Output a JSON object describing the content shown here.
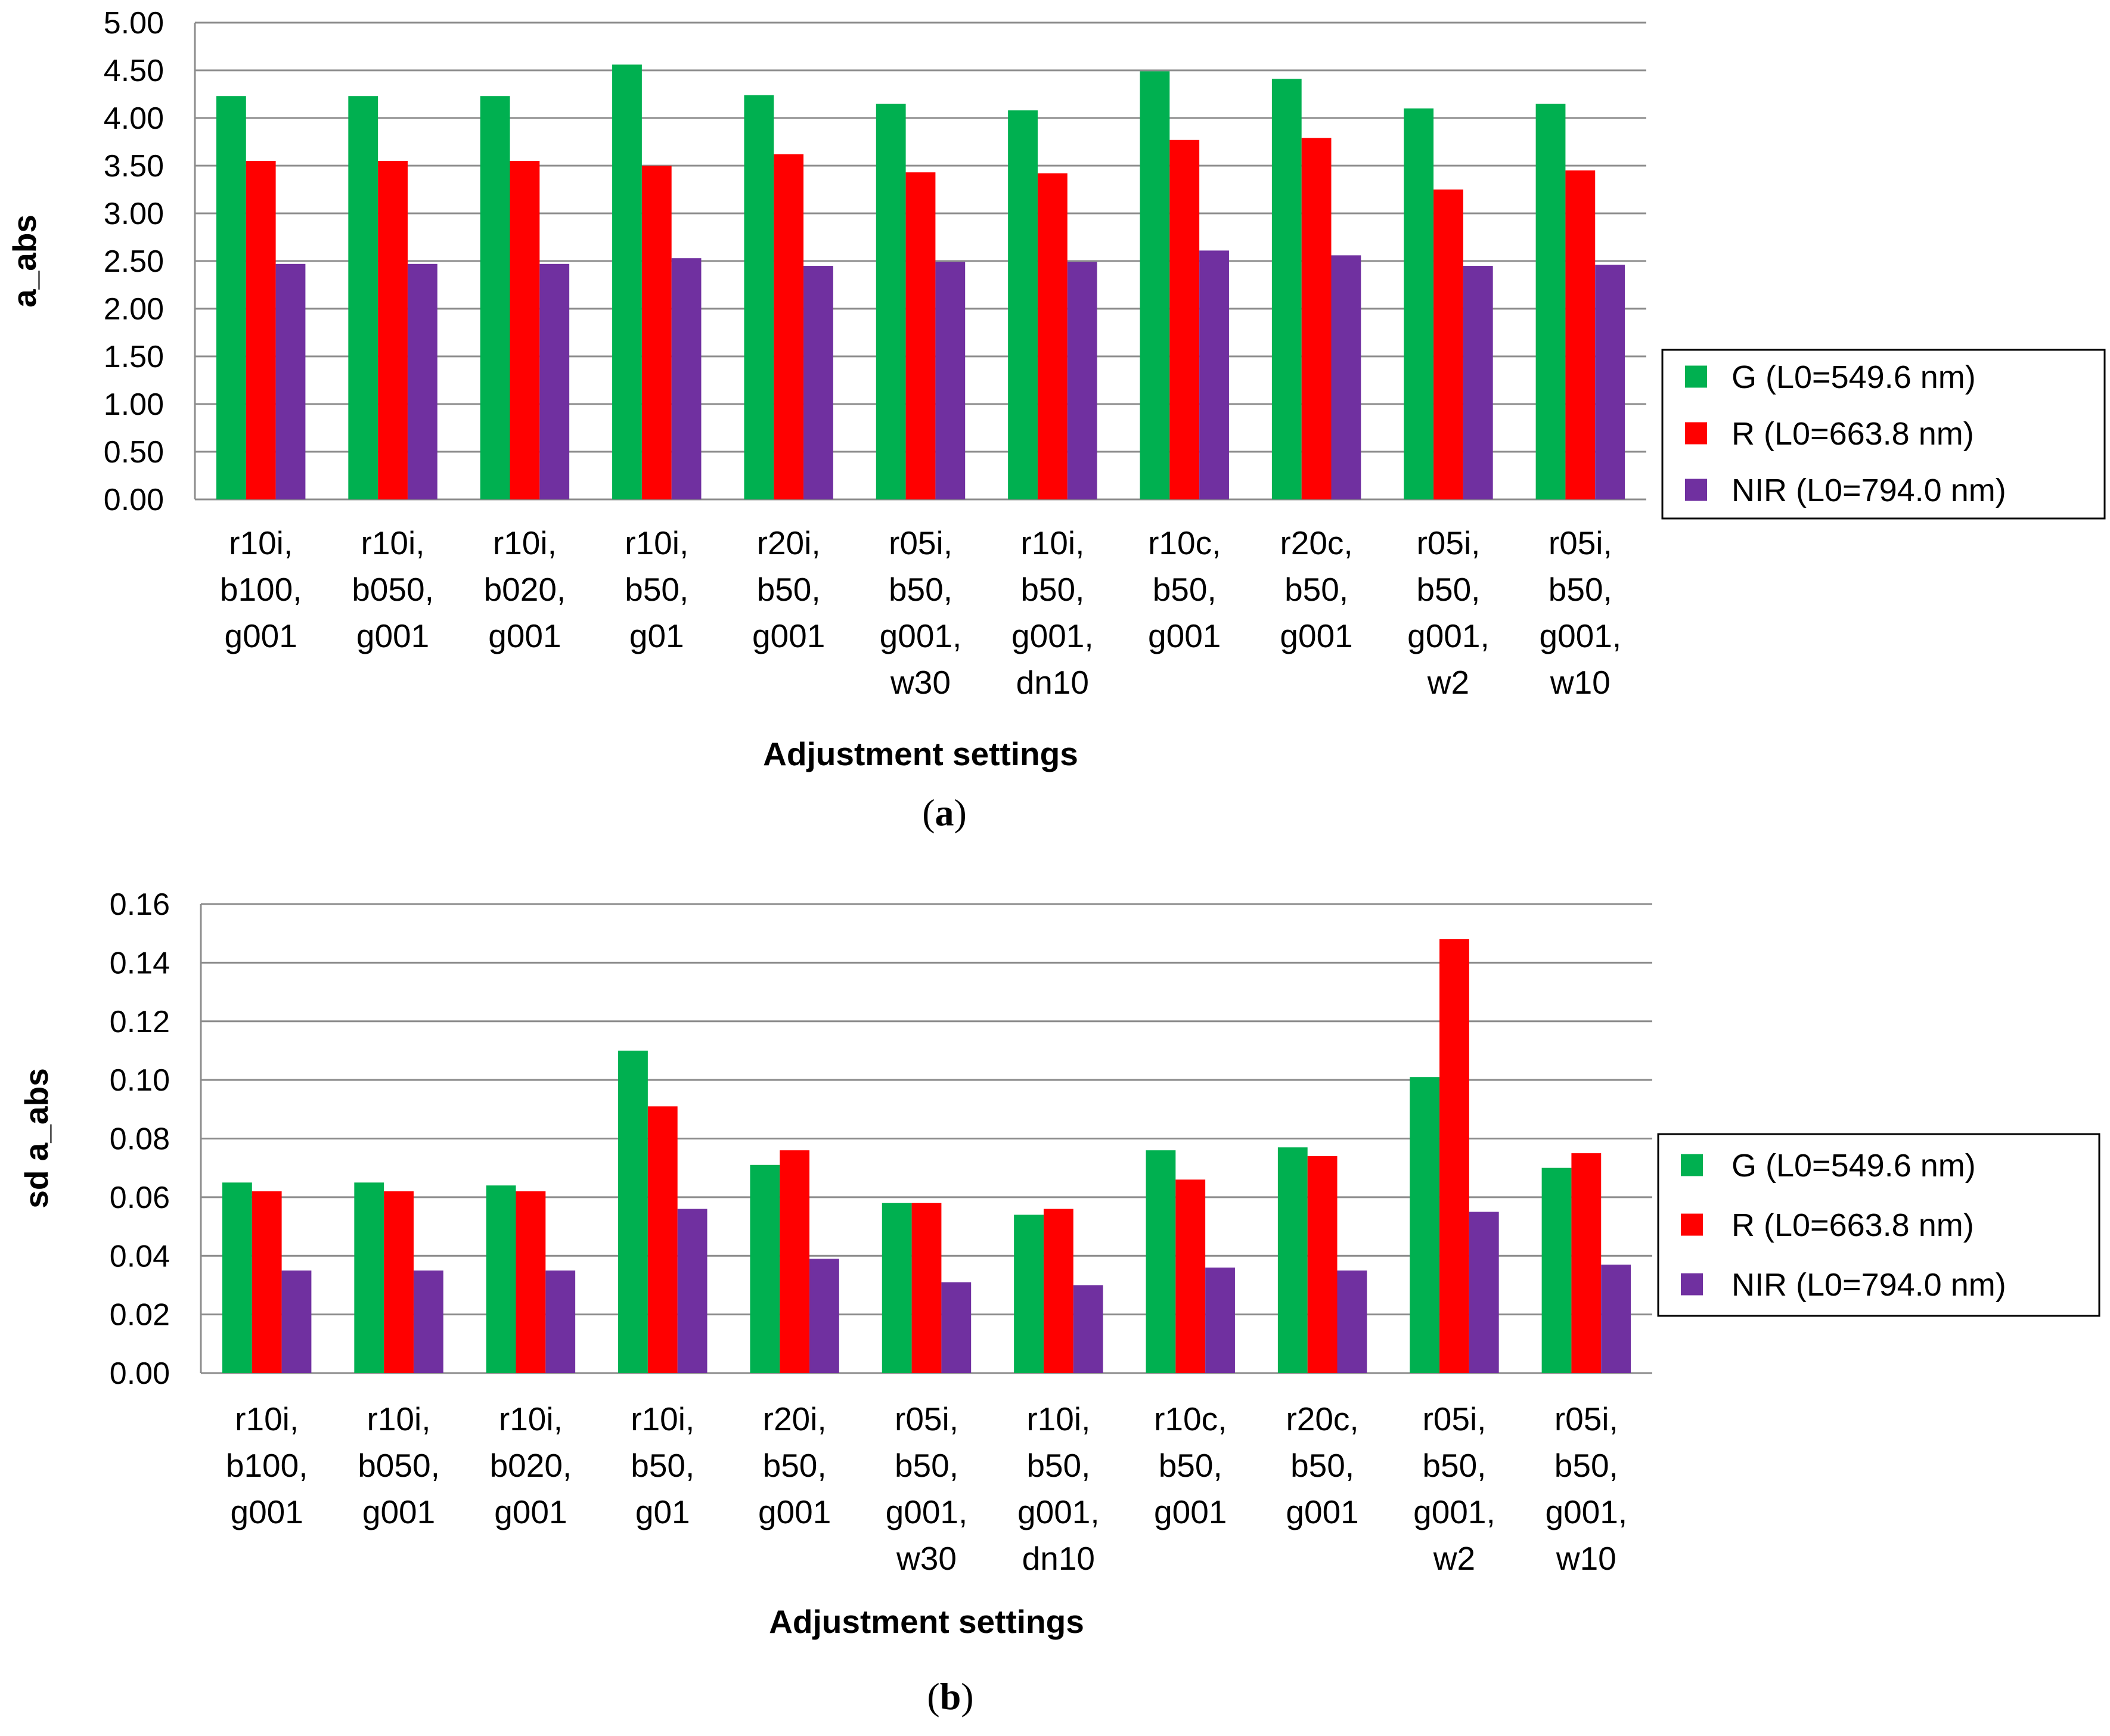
{
  "chart_data": [
    {
      "type": "bar",
      "panel_label": "a",
      "categories": [
        [
          "r10i,",
          "b100,",
          "g001"
        ],
        [
          "r10i,",
          "b050,",
          "g001"
        ],
        [
          "r10i,",
          "b020,",
          "g001"
        ],
        [
          "r10i,",
          "b50,",
          "g01"
        ],
        [
          "r20i,",
          "b50,",
          "g001"
        ],
        [
          "r05i,",
          "b50,",
          "g001,",
          "w30"
        ],
        [
          "r10i,",
          "b50,",
          "g001,",
          "dn10"
        ],
        [
          "r10c,",
          "b50,",
          "g001"
        ],
        [
          "r20c,",
          "b50,",
          "g001"
        ],
        [
          "r05i,",
          "b50,",
          "g001,",
          "w2"
        ],
        [
          "r05i,",
          "b50,",
          "g001,",
          "w10"
        ]
      ],
      "series": [
        {
          "name": "G (L0=549.6 nm)",
          "color": "#00b050",
          "values": [
            4.23,
            4.23,
            4.23,
            4.56,
            4.24,
            4.15,
            4.08,
            4.49,
            4.41,
            4.1,
            4.15
          ]
        },
        {
          "name": "R (L0=663.8 nm)",
          "color": "#ff0000",
          "values": [
            3.55,
            3.55,
            3.55,
            3.5,
            3.62,
            3.43,
            3.42,
            3.77,
            3.79,
            3.25,
            3.45
          ]
        },
        {
          "name": "NIR (L0=794.0 nm)",
          "color": "#7030a0",
          "values": [
            2.47,
            2.47,
            2.47,
            2.53,
            2.45,
            2.49,
            2.49,
            2.61,
            2.56,
            2.45,
            2.46
          ]
        }
      ],
      "xlabel": "Adjustment settings",
      "ylabel": "a_abs",
      "ylim": [
        0,
        5
      ],
      "ystep": 0.5,
      "ytick_labels": [
        "0.00",
        "0.50",
        "1.00",
        "1.50",
        "2.00",
        "2.50",
        "3.00",
        "3.50",
        "4.00",
        "4.50",
        "5.00"
      ],
      "grid": true,
      "legend": "right"
    },
    {
      "type": "bar",
      "panel_label": "b",
      "categories": [
        [
          "r10i,",
          "b100,",
          "g001"
        ],
        [
          "r10i,",
          "b050,",
          "g001"
        ],
        [
          "r10i,",
          "b020,",
          "g001"
        ],
        [
          "r10i,",
          "b50,",
          "g01"
        ],
        [
          "r20i,",
          "b50,",
          "g001"
        ],
        [
          "r05i,",
          "b50,",
          "g001,",
          "w30"
        ],
        [
          "r10i,",
          "b50,",
          "g001,",
          "dn10"
        ],
        [
          "r10c,",
          "b50,",
          "g001"
        ],
        [
          "r20c,",
          "b50,",
          "g001"
        ],
        [
          "r05i,",
          "b50,",
          "g001,",
          "w2"
        ],
        [
          "r05i,",
          "b50,",
          "g001,",
          "w10"
        ]
      ],
      "series": [
        {
          "name": "G (L0=549.6 nm)",
          "color": "#00b050",
          "values": [
            0.065,
            0.065,
            0.064,
            0.11,
            0.071,
            0.058,
            0.054,
            0.076,
            0.077,
            0.101,
            0.07
          ]
        },
        {
          "name": "R (L0=663.8 nm)",
          "color": "#ff0000",
          "values": [
            0.062,
            0.062,
            0.062,
            0.091,
            0.076,
            0.058,
            0.056,
            0.066,
            0.074,
            0.148,
            0.075
          ]
        },
        {
          "name": "NIR (L0=794.0 nm)",
          "color": "#7030a0",
          "values": [
            0.035,
            0.035,
            0.035,
            0.056,
            0.039,
            0.031,
            0.03,
            0.036,
            0.035,
            0.055,
            0.037
          ]
        }
      ],
      "xlabel": "Adjustment settings",
      "ylabel": "sd a_abs",
      "ylim": [
        0,
        0.16
      ],
      "ystep": 0.02,
      "ytick_labels": [
        "0.00",
        "0.02",
        "0.04",
        "0.06",
        "0.08",
        "0.10",
        "0.12",
        "0.14",
        "0.16"
      ],
      "grid": true,
      "legend": "right"
    }
  ]
}
